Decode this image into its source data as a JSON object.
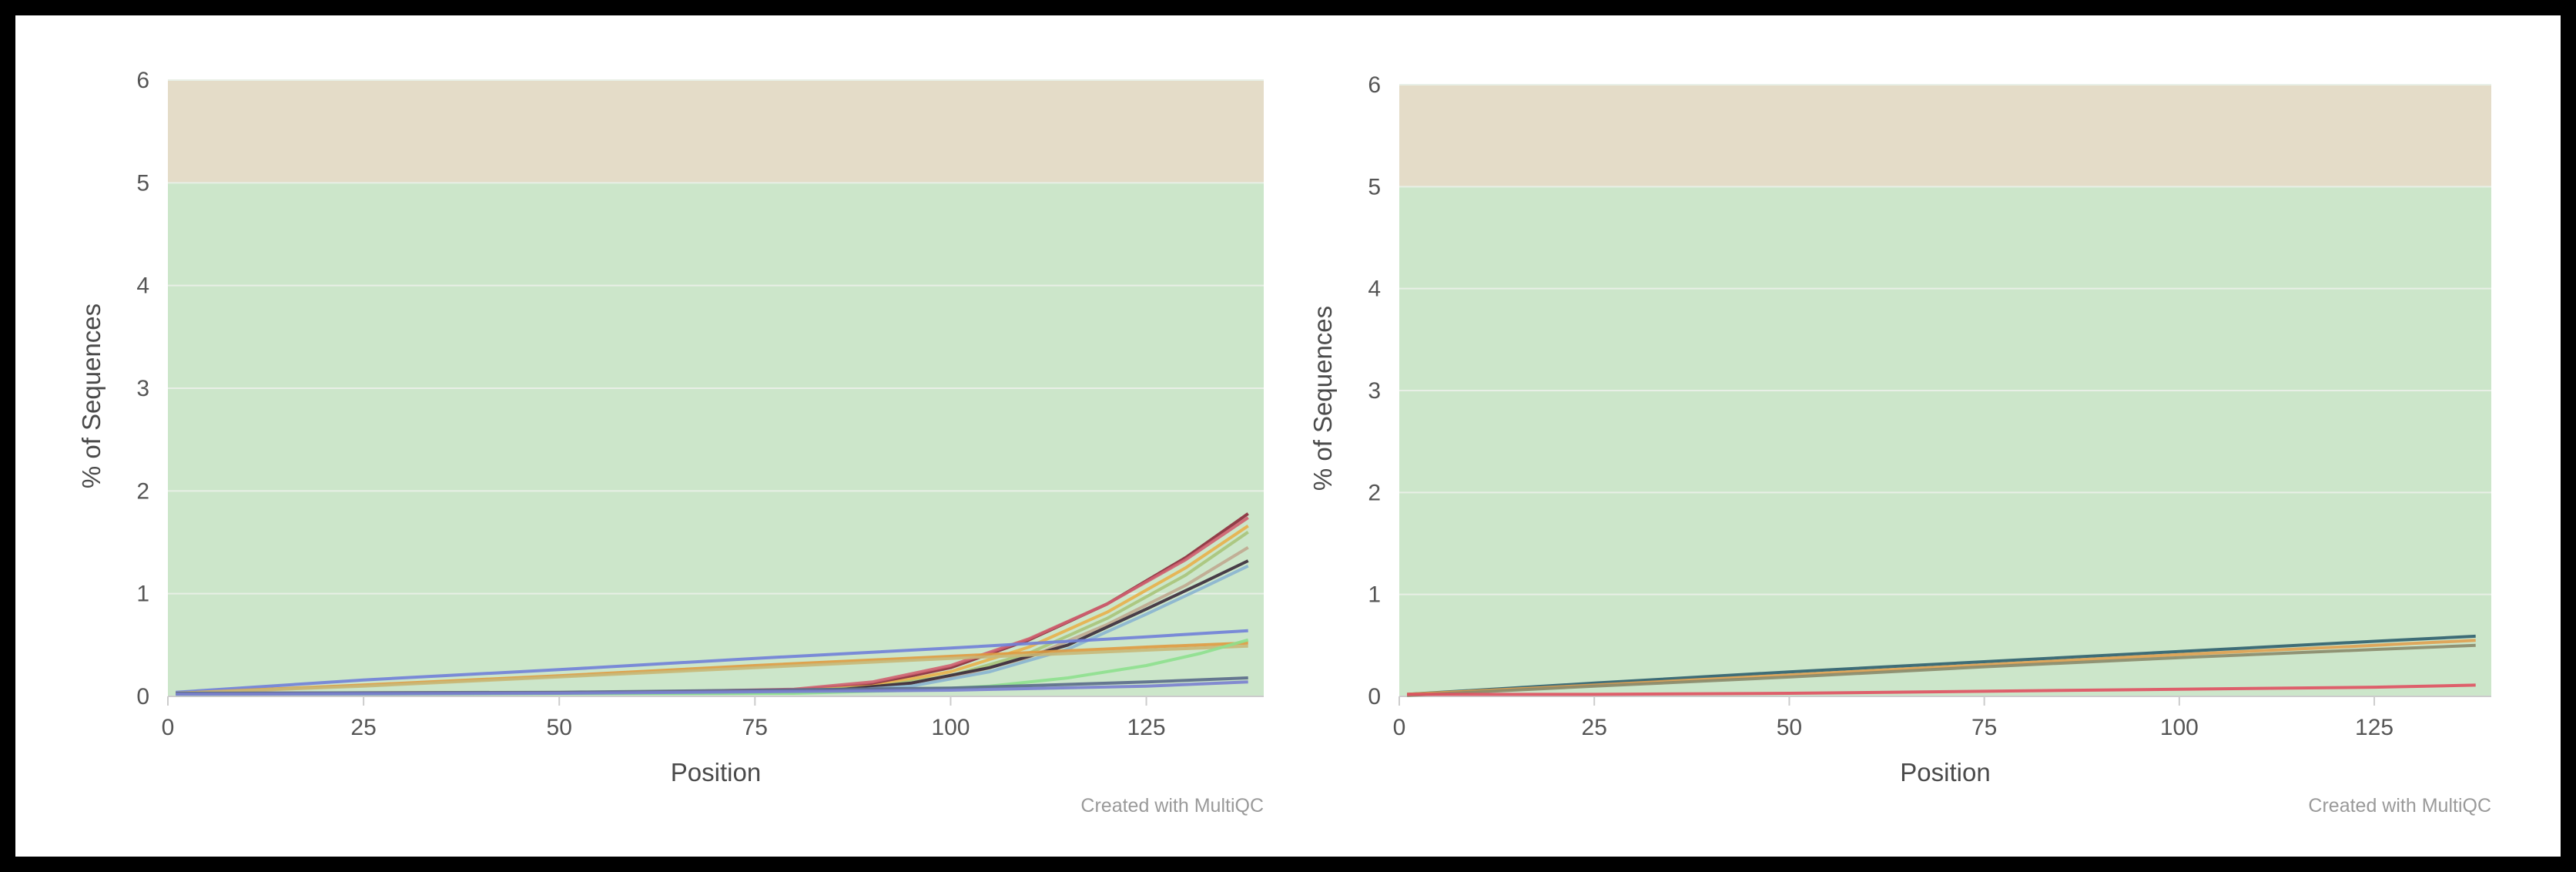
{
  "colors": {
    "warn_band": "#e4dcc8",
    "pass_band": "#cce6ca",
    "grid": "#e8efe6"
  },
  "chart_data": [
    {
      "type": "line",
      "xlabel": "Position",
      "ylabel": "% of Sequences",
      "xlim": [
        0,
        140
      ],
      "ylim": [
        0,
        6
      ],
      "x_ticks": [
        "0",
        "25",
        "50",
        "75",
        "100",
        "125"
      ],
      "y_ticks": [
        "0",
        "1",
        "2",
        "3",
        "4",
        "5",
        "6"
      ],
      "bands": [
        {
          "from": 0,
          "to": 5,
          "status": "pass"
        },
        {
          "from": 5,
          "to": 6,
          "status": "warn"
        }
      ],
      "credits": "Created with MultiQC",
      "series": [
        {
          "color": "#8b2a3a",
          "x": [
            1,
            60,
            80,
            90,
            100,
            110,
            120,
            130,
            138
          ],
          "y": [
            0.03,
            0.03,
            0.06,
            0.12,
            0.28,
            0.55,
            0.9,
            1.35,
            1.78
          ]
        },
        {
          "color": "#d06070",
          "x": [
            1,
            60,
            80,
            90,
            100,
            110,
            120,
            130,
            138
          ],
          "y": [
            0.03,
            0.04,
            0.07,
            0.14,
            0.3,
            0.56,
            0.9,
            1.33,
            1.74
          ]
        },
        {
          "color": "#e8b04a",
          "x": [
            1,
            60,
            80,
            90,
            100,
            110,
            120,
            130,
            138
          ],
          "y": [
            0.03,
            0.03,
            0.05,
            0.1,
            0.24,
            0.48,
            0.82,
            1.25,
            1.66
          ]
        },
        {
          "color": "#a8c47a",
          "x": [
            1,
            60,
            80,
            90,
            100,
            110,
            120,
            130,
            138
          ],
          "y": [
            0.03,
            0.03,
            0.05,
            0.09,
            0.2,
            0.42,
            0.76,
            1.18,
            1.6
          ]
        },
        {
          "color": "#c0a890",
          "x": [
            1,
            60,
            80,
            90,
            100,
            110,
            120,
            130,
            138
          ],
          "y": [
            0.03,
            0.03,
            0.04,
            0.08,
            0.18,
            0.38,
            0.7,
            1.08,
            1.45
          ]
        },
        {
          "color": "#3a2a3a",
          "x": [
            1,
            70,
            85,
            95,
            105,
            115,
            125,
            132,
            138
          ],
          "y": [
            0.03,
            0.03,
            0.06,
            0.13,
            0.28,
            0.5,
            0.85,
            1.1,
            1.32
          ]
        },
        {
          "color": "#8ab4d0",
          "x": [
            1,
            70,
            85,
            95,
            105,
            115,
            125,
            132,
            138
          ],
          "y": [
            0.03,
            0.03,
            0.05,
            0.1,
            0.24,
            0.46,
            0.8,
            1.05,
            1.27
          ]
        },
        {
          "color": "#7080d8",
          "x": [
            1,
            25,
            50,
            75,
            100,
            125,
            138
          ],
          "y": [
            0.04,
            0.16,
            0.26,
            0.37,
            0.47,
            0.58,
            0.64
          ]
        },
        {
          "color": "#e09a40",
          "x": [
            1,
            25,
            50,
            75,
            100,
            125,
            138
          ],
          "y": [
            0.03,
            0.11,
            0.2,
            0.3,
            0.39,
            0.48,
            0.52
          ]
        },
        {
          "color": "#c8b878",
          "x": [
            1,
            25,
            50,
            75,
            100,
            125,
            138
          ],
          "y": [
            0.03,
            0.1,
            0.19,
            0.28,
            0.37,
            0.45,
            0.49
          ]
        },
        {
          "color": "#8ee08e",
          "x": [
            1,
            80,
            95,
            105,
            115,
            125,
            132,
            138
          ],
          "y": [
            0.02,
            0.03,
            0.06,
            0.1,
            0.18,
            0.3,
            0.42,
            0.55
          ]
        },
        {
          "color": "#5a6a8a",
          "x": [
            1,
            50,
            100,
            125,
            138
          ],
          "y": [
            0.03,
            0.04,
            0.08,
            0.14,
            0.18
          ]
        },
        {
          "color": "#7a7fd0",
          "x": [
            1,
            50,
            100,
            125,
            138
          ],
          "y": [
            0.02,
            0.03,
            0.06,
            0.1,
            0.14
          ]
        }
      ]
    },
    {
      "type": "line",
      "xlabel": "Position",
      "ylabel": "% of Sequences",
      "xlim": [
        0,
        140
      ],
      "ylim": [
        0,
        6
      ],
      "x_ticks": [
        "0",
        "25",
        "50",
        "75",
        "100",
        "125"
      ],
      "y_ticks": [
        "0",
        "1",
        "2",
        "3",
        "4",
        "5",
        "6"
      ],
      "bands": [
        {
          "from": 0,
          "to": 5,
          "status": "pass"
        },
        {
          "from": 5,
          "to": 6,
          "status": "warn"
        }
      ],
      "credits": "Created with MultiQC",
      "series": [
        {
          "color": "#2f5f6e",
          "x": [
            1,
            25,
            50,
            75,
            100,
            125,
            138
          ],
          "y": [
            0.02,
            0.13,
            0.24,
            0.34,
            0.44,
            0.54,
            0.59
          ]
        },
        {
          "color": "#e0a050",
          "x": [
            1,
            25,
            50,
            75,
            100,
            125,
            138
          ],
          "y": [
            0.02,
            0.11,
            0.21,
            0.31,
            0.41,
            0.5,
            0.55
          ]
        },
        {
          "color": "#8a8a6a",
          "x": [
            1,
            25,
            50,
            75,
            100,
            125,
            138
          ],
          "y": [
            0.01,
            0.1,
            0.19,
            0.29,
            0.38,
            0.46,
            0.5
          ]
        },
        {
          "color": "#e05060",
          "x": [
            1,
            25,
            50,
            75,
            100,
            125,
            138
          ],
          "y": [
            0.02,
            0.02,
            0.03,
            0.05,
            0.07,
            0.09,
            0.11
          ]
        }
      ]
    }
  ]
}
